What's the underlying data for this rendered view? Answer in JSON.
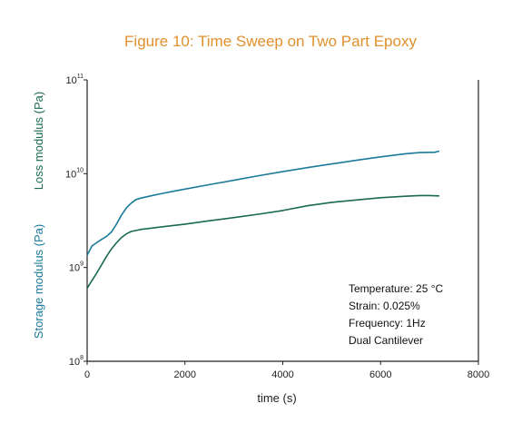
{
  "chart_data": {
    "type": "line",
    "title": "Figure 10: Time Sweep on Two Part Epoxy",
    "xlabel": "time (s)",
    "ylabel_storage": "Storage modulus (Pa)",
    "ylabel_loss": "Loss modulus (Pa)",
    "xlim": [
      0,
      8000
    ],
    "ylim": [
      100000000,
      100000000000
    ],
    "yscale": "log",
    "x_ticks": [
      {
        "value": 0,
        "label": "0"
      },
      {
        "value": 2000,
        "label": "2000"
      },
      {
        "value": 4000,
        "label": "4000"
      },
      {
        "value": 6000,
        "label": "6000"
      },
      {
        "value": 8000,
        "label": "8000"
      }
    ],
    "y_ticks": [
      {
        "value": 100000000,
        "base": "10",
        "exp": "8"
      },
      {
        "value": 1000000000,
        "base": "10",
        "exp": "9"
      },
      {
        "value": 10000000000,
        "base": "10",
        "exp": "10"
      },
      {
        "value": 100000000000,
        "base": "10",
        "exp": "11"
      }
    ],
    "grid": false,
    "colors": {
      "storage": "#1b7a9a",
      "loss": "#1a6b4e",
      "title": "#e0902e",
      "axis": "#222222"
    },
    "series": [
      {
        "key": "storage",
        "x": [
          0,
          100,
          200,
          300,
          400,
          500,
          600,
          700,
          800,
          900,
          1000,
          1100,
          1300,
          1500,
          1800,
          2000,
          2500,
          3000,
          3500,
          4000,
          4500,
          5000,
          5500,
          6000,
          6500,
          6800,
          7000,
          7100,
          7200
        ],
        "y": [
          1350000000,
          1700000000,
          1850000000,
          2000000000,
          2150000000,
          2400000000,
          2900000000,
          3600000000,
          4300000000,
          4850000000,
          5300000000,
          5500000000,
          5800000000,
          6100000000,
          6550000000,
          6850000000,
          7650000000,
          8500000000,
          9500000000,
          10500000000,
          11600000000,
          12700000000,
          13900000000,
          15100000000,
          16300000000,
          16800000000,
          16900000000,
          16900000000,
          17400000000
        ]
      },
      {
        "key": "loss",
        "x": [
          0,
          100,
          200,
          300,
          400,
          500,
          600,
          700,
          800,
          900,
          1000,
          1100,
          1300,
          1500,
          2000,
          2500,
          3000,
          3500,
          4000,
          4500,
          5000,
          5500,
          6000,
          6500,
          6800,
          7000,
          7200
        ],
        "y": [
          600000000,
          730000000,
          880000000,
          1080000000,
          1320000000,
          1580000000,
          1830000000,
          2080000000,
          2280000000,
          2420000000,
          2480000000,
          2550000000,
          2620000000,
          2700000000,
          2900000000,
          3150000000,
          3400000000,
          3700000000,
          4050000000,
          4550000000,
          4950000000,
          5250000000,
          5550000000,
          5750000000,
          5850000000,
          5850000000,
          5800000000
        ]
      }
    ],
    "annotations": [
      "Temperature: 25 °C",
      "Strain: 0.025%",
      "Frequency: 1Hz",
      "Dual Cantilever"
    ]
  }
}
